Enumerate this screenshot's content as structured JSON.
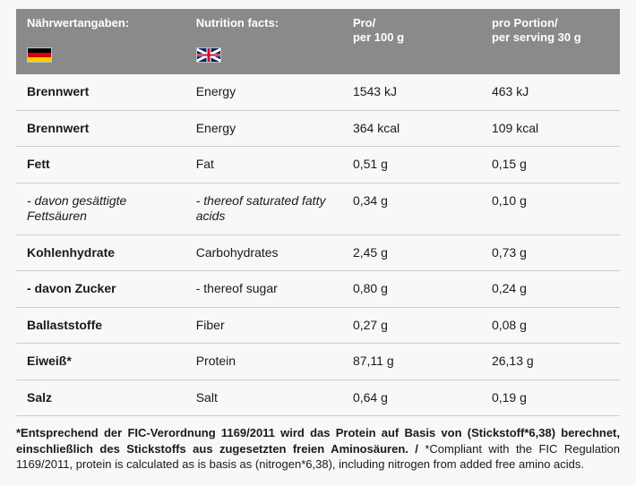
{
  "colors": {
    "header_bg": "#8a8a8a",
    "header_text": "#ffffff",
    "body_bg": "#f7f8f7",
    "row_border": "#cfcfcf",
    "text": "#1a1a1a"
  },
  "header": {
    "col1_label": "Nährwertangaben:",
    "col2_label": "Nutrition facts:",
    "col3_label": "Pro/\nper 100 g",
    "col4_label": "pro Portion/\nper serving 30 g",
    "col1_flag": "de",
    "col2_flag": "uk"
  },
  "rows": [
    {
      "de": "Brennwert",
      "en": "Energy",
      "per100": "1543 kJ",
      "per30": "463 kJ",
      "sub": false
    },
    {
      "de": "Brennwert",
      "en": "Energy",
      "per100": "364 kcal",
      "per30": "109 kcal",
      "sub": false
    },
    {
      "de": "Fett",
      "en": "Fat",
      "per100": "0,51 g",
      "per30": "0,15 g",
      "sub": false
    },
    {
      "de": "- davon gesättigte Fettsäuren",
      "en": "- thereof saturated fatty acids",
      "per100": "0,34 g",
      "per30": "0,10 g",
      "sub": true
    },
    {
      "de": "Kohlenhydrate",
      "en": "Carbohydrates",
      "per100": "2,45 g",
      "per30": "0,73 g",
      "sub": false
    },
    {
      "de": "- davon Zucker",
      "en": "- thereof sugar",
      "per100": "0,80 g",
      "per30": "0,24 g",
      "sub": false
    },
    {
      "de": "Ballaststoffe",
      "en": "Fiber",
      "per100": "0,27 g",
      "per30": "0,08 g",
      "sub": false
    },
    {
      "de": "Eiweiß*",
      "en": "Protein",
      "per100": "87,11 g",
      "per30": "26,13 g",
      "sub": false
    },
    {
      "de": "Salz",
      "en": "Salt",
      "per100": "0,64  g",
      "per30": "0,19 g",
      "sub": false
    }
  ],
  "footnote": {
    "bold_part": "*Entsprechend der FIC-Verordnung 1169/2011 wird das Protein auf Basis von (Stickstoff*6,38) berechnet, einschließlich des Stickstoffs aus zugesetzten freien Aminosäuren. / ",
    "normal_part": "*Compliant with the FIC Regulation 1169/2011, protein is calculated as is basis as (nitrogen*6,38), including nitrogen from added free amino acids."
  }
}
